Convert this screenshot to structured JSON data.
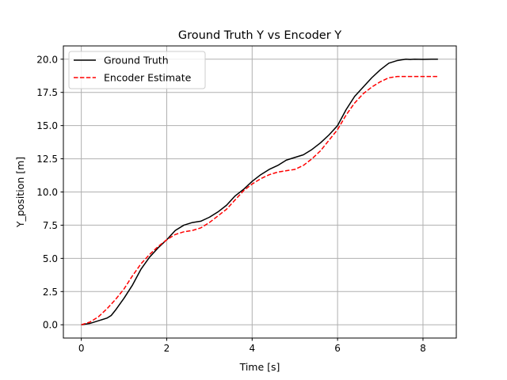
{
  "chart_data": {
    "type": "line",
    "title": "Ground Truth Y vs Encoder Y",
    "xlabel": "Time [s]",
    "ylabel": "Y_position [m]",
    "xlim": [
      -0.42,
      8.78
    ],
    "ylim": [
      -1.0,
      21.0
    ],
    "xticks": [
      0,
      2,
      4,
      6,
      8
    ],
    "xtick_labels": [
      "0",
      "2",
      "4",
      "6",
      "8"
    ],
    "yticks": [
      0.0,
      2.5,
      5.0,
      7.5,
      10.0,
      12.5,
      15.0,
      17.5,
      20.0
    ],
    "ytick_labels": [
      "0.0",
      "2.5",
      "5.0",
      "7.5",
      "10.0",
      "12.5",
      "15.0",
      "17.5",
      "20.0"
    ],
    "grid": true,
    "legend_position": "top-left",
    "series": [
      {
        "name": "Ground Truth",
        "color": "#000000",
        "style": "solid",
        "x": [
          0.0,
          0.2,
          0.4,
          0.6,
          0.7,
          0.8,
          1.0,
          1.2,
          1.4,
          1.6,
          1.8,
          2.0,
          2.2,
          2.4,
          2.6,
          2.8,
          3.0,
          3.2,
          3.4,
          3.6,
          3.8,
          4.0,
          4.2,
          4.4,
          4.6,
          4.8,
          5.0,
          5.2,
          5.4,
          5.6,
          5.8,
          6.0,
          6.2,
          6.4,
          6.6,
          6.8,
          7.0,
          7.2,
          7.4,
          7.6,
          7.7,
          7.8,
          8.0,
          8.2,
          8.35
        ],
        "y": [
          0.0,
          0.1,
          0.3,
          0.5,
          0.7,
          1.1,
          2.0,
          3.0,
          4.2,
          5.1,
          5.8,
          6.4,
          7.1,
          7.5,
          7.7,
          7.8,
          8.1,
          8.5,
          9.0,
          9.7,
          10.2,
          10.8,
          11.3,
          11.7,
          12.0,
          12.4,
          12.6,
          12.8,
          13.2,
          13.7,
          14.3,
          15.0,
          16.2,
          17.2,
          17.9,
          18.6,
          19.2,
          19.7,
          19.9,
          20.0,
          19.98,
          20.0,
          19.99,
          20.0,
          20.0
        ]
      },
      {
        "name": "Encoder Estimate",
        "color": "#ff0000",
        "style": "dashed",
        "x": [
          0.0,
          0.2,
          0.4,
          0.6,
          0.8,
          1.0,
          1.2,
          1.4,
          1.6,
          1.8,
          2.0,
          2.2,
          2.4,
          2.6,
          2.8,
          3.0,
          3.2,
          3.4,
          3.6,
          3.8,
          4.0,
          4.2,
          4.4,
          4.6,
          4.8,
          5.0,
          5.2,
          5.4,
          5.6,
          5.8,
          6.0,
          6.2,
          6.4,
          6.6,
          6.8,
          7.0,
          7.2,
          7.4,
          7.6,
          7.8,
          8.0,
          8.2,
          8.35
        ],
        "y": [
          0.0,
          0.2,
          0.6,
          1.2,
          1.9,
          2.7,
          3.7,
          4.6,
          5.3,
          5.9,
          6.4,
          6.8,
          7.0,
          7.1,
          7.3,
          7.7,
          8.2,
          8.7,
          9.4,
          10.1,
          10.6,
          11.0,
          11.3,
          11.5,
          11.6,
          11.7,
          12.0,
          12.5,
          13.1,
          13.9,
          14.7,
          15.8,
          16.7,
          17.4,
          17.9,
          18.3,
          18.6,
          18.7,
          18.7,
          18.7,
          18.7,
          18.7,
          18.7
        ]
      }
    ]
  }
}
